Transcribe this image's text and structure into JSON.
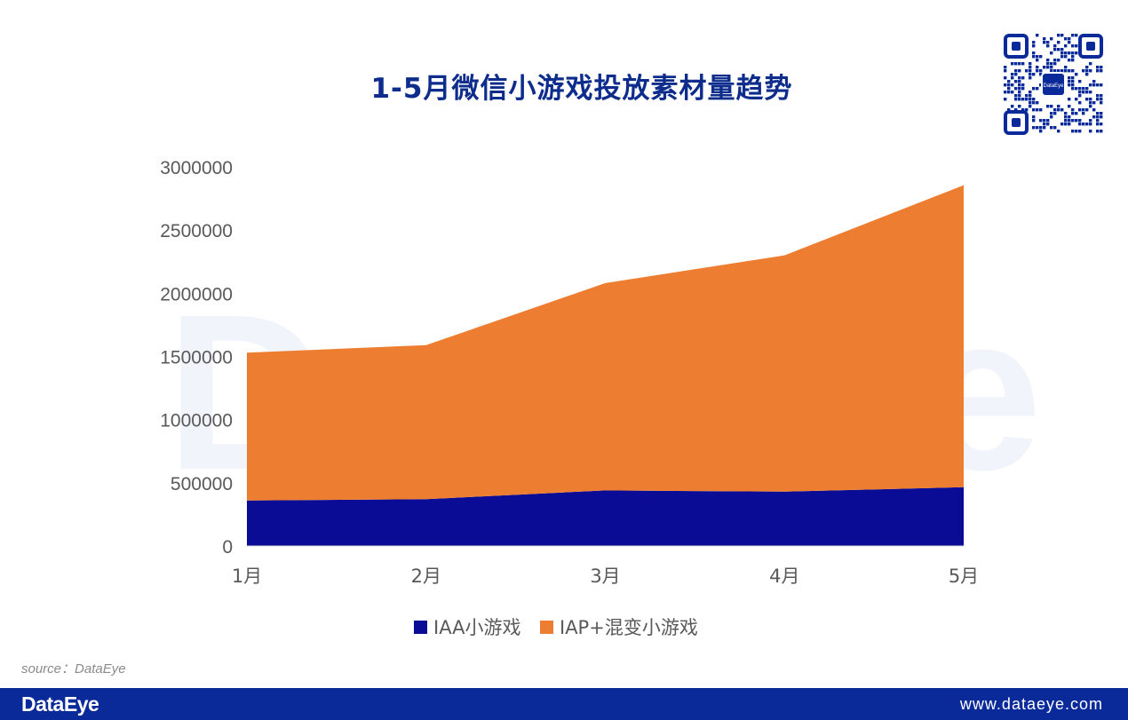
{
  "page": {
    "title": "1-5月微信小游戏投放素材量趋势",
    "source": "source：DataEye",
    "brand": "DataEye",
    "url": "www.dataeye.com",
    "watermark": "DataEye",
    "qr_label": "DataEye"
  },
  "colors": {
    "iaa": "#0a0c96",
    "iap": "#ed7d31",
    "axis_text": "#595959",
    "footer": "#0b2a9a",
    "title": "#0d2c8c"
  },
  "chart_data": {
    "type": "area",
    "stacked": true,
    "categories": [
      "1月",
      "2月",
      "3月",
      "4月",
      "5月"
    ],
    "series": [
      {
        "name": "IAA小游戏",
        "values": [
          360000,
          370000,
          440000,
          430000,
          465000
        ],
        "color": "#0a0c96"
      },
      {
        "name": "IAP+混变小游戏",
        "values": [
          1170000,
          1220000,
          1640000,
          1870000,
          2390000
        ],
        "color": "#ed7d31"
      }
    ],
    "ylim": [
      0,
      3000000
    ],
    "yticks": [
      "0",
      "500000",
      "1000000",
      "1500000",
      "2000000",
      "2500000",
      "3000000"
    ],
    "grid": false,
    "legend": "bottom"
  }
}
